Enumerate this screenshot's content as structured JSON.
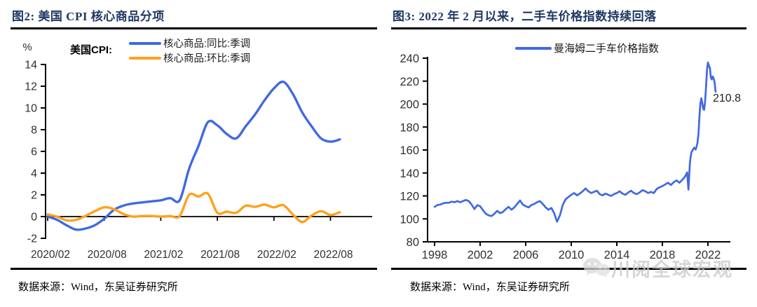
{
  "chart_data": [
    {
      "type": "line",
      "title": "图2:  美国 CPI 核心商品分项",
      "legend_prefix": "美国CPI:",
      "y_unit": "%",
      "ylim": [
        -2,
        14
      ],
      "y_ticks": [
        14,
        12,
        10,
        8,
        6,
        4,
        2,
        0,
        -2
      ],
      "x_tick_labels": [
        "2020/02",
        "2020/08",
        "2021/02",
        "2021/08",
        "2022/02",
        "2022/08"
      ],
      "x_tick_positions": [
        0,
        6,
        12,
        18,
        24,
        30
      ],
      "categories": [
        "2020/02",
        "2020/03",
        "2020/04",
        "2020/05",
        "2020/06",
        "2020/07",
        "2020/08",
        "2020/09",
        "2020/10",
        "2020/11",
        "2020/12",
        "2021/01",
        "2021/02",
        "2021/03",
        "2021/04",
        "2021/05",
        "2021/06",
        "2021/07",
        "2021/08",
        "2021/09",
        "2021/10",
        "2021/11",
        "2021/12",
        "2022/01",
        "2022/02",
        "2022/03",
        "2022/04",
        "2022/05",
        "2022/06",
        "2022/07",
        "2022/08",
        "2022/09"
      ],
      "series": [
        {
          "name": "核心商品:同比:季调",
          "color": "#4169e1",
          "values": [
            0.0,
            -0.3,
            -0.8,
            -1.2,
            -1.1,
            -0.8,
            -0.2,
            0.6,
            1.0,
            1.2,
            1.3,
            1.4,
            1.5,
            1.7,
            1.5,
            4.4,
            6.5,
            8.7,
            8.4,
            7.6,
            7.2,
            8.3,
            9.4,
            10.7,
            11.8,
            12.4,
            11.3,
            9.6,
            8.3,
            7.2,
            6.9,
            7.1
          ]
        },
        {
          "name": "核心商品:环比:季调",
          "color": "#ffa11c",
          "values": [
            0.2,
            0.0,
            -0.35,
            -0.3,
            0.05,
            0.5,
            0.85,
            0.7,
            0.25,
            0.0,
            0.05,
            0.05,
            0.0,
            0.05,
            0.05,
            2.0,
            1.85,
            2.1,
            0.35,
            0.45,
            0.35,
            1.0,
            0.9,
            1.1,
            0.85,
            1.05,
            0.2,
            -0.5,
            0.1,
            0.5,
            0.15,
            0.4
          ]
        }
      ],
      "grid": "off",
      "legend_position": "top",
      "source": "数据来源：Wind，东吴证券研究所"
    },
    {
      "type": "line",
      "title": "图3:  2022 年 2 月以来，二手车价格指数持续回落",
      "ylim": [
        80,
        240
      ],
      "xlim": [
        1998,
        2022
      ],
      "y_ticks": [
        240,
        220,
        200,
        180,
        160,
        140,
        120,
        100,
        80
      ],
      "x_ticks": [
        1998,
        2002,
        2006,
        2010,
        2014,
        2018,
        2022
      ],
      "x_tick_labels": [
        "1998",
        "2002",
        "2006",
        "2010",
        "2014",
        "2018",
        "2022"
      ],
      "series": [
        {
          "name": "曼海姆二手车价格指数",
          "color": "#4169e1",
          "points": [
            [
              1998.0,
              110.5
            ],
            [
              1998.25,
              112
            ],
            [
              1998.5,
              112.5
            ],
            [
              1998.75,
              113.5
            ],
            [
              1999.0,
              114
            ],
            [
              1999.25,
              114
            ],
            [
              1999.5,
              115
            ],
            [
              1999.75,
              114.5
            ],
            [
              2000.0,
              115.5
            ],
            [
              2000.25,
              114.5
            ],
            [
              2000.5,
              115.5
            ],
            [
              2000.75,
              116.5
            ],
            [
              2001.0,
              115.5
            ],
            [
              2001.25,
              112.5
            ],
            [
              2001.5,
              108.5
            ],
            [
              2001.75,
              112
            ],
            [
              2002.0,
              111
            ],
            [
              2002.25,
              107.5
            ],
            [
              2002.5,
              104.5
            ],
            [
              2002.75,
              103
            ],
            [
              2003.0,
              102.5
            ],
            [
              2003.25,
              104.5
            ],
            [
              2003.5,
              107
            ],
            [
              2003.75,
              105
            ],
            [
              2004.0,
              106
            ],
            [
              2004.25,
              108.5
            ],
            [
              2004.5,
              110.5
            ],
            [
              2004.75,
              108
            ],
            [
              2005.0,
              110
            ],
            [
              2005.25,
              113
            ],
            [
              2005.5,
              116
            ],
            [
              2005.75,
              112.5
            ],
            [
              2006.0,
              111
            ],
            [
              2006.25,
              110
            ],
            [
              2006.5,
              112
            ],
            [
              2006.75,
              113
            ],
            [
              2007.0,
              114.5
            ],
            [
              2007.25,
              115.5
            ],
            [
              2007.5,
              113
            ],
            [
              2007.75,
              110
            ],
            [
              2008.0,
              108
            ],
            [
              2008.25,
              109.5
            ],
            [
              2008.5,
              105
            ],
            [
              2008.75,
              97.5
            ],
            [
              2009.0,
              103
            ],
            [
              2009.25,
              112
            ],
            [
              2009.5,
              117
            ],
            [
              2009.75,
              119
            ],
            [
              2010.0,
              121
            ],
            [
              2010.25,
              122.5
            ],
            [
              2010.5,
              120.5
            ],
            [
              2010.75,
              122
            ],
            [
              2011.0,
              124
            ],
            [
              2011.25,
              126.5
            ],
            [
              2011.5,
              124
            ],
            [
              2011.75,
              122.5
            ],
            [
              2012.0,
              123.5
            ],
            [
              2012.25,
              124.5
            ],
            [
              2012.5,
              121.5
            ],
            [
              2012.75,
              120.5
            ],
            [
              2013.0,
              122
            ],
            [
              2013.25,
              121
            ],
            [
              2013.5,
              120
            ],
            [
              2013.75,
              121.5
            ],
            [
              2014.0,
              122.5
            ],
            [
              2014.25,
              124
            ],
            [
              2014.5,
              122
            ],
            [
              2014.75,
              121
            ],
            [
              2015.0,
              123
            ],
            [
              2015.25,
              124.5
            ],
            [
              2015.5,
              122.5
            ],
            [
              2015.75,
              121.5
            ],
            [
              2016.0,
              123
            ],
            [
              2016.25,
              125
            ],
            [
              2016.5,
              124
            ],
            [
              2016.75,
              122.5
            ],
            [
              2017.0,
              123.5
            ],
            [
              2017.25,
              122.5
            ],
            [
              2017.5,
              126
            ],
            [
              2017.75,
              127.5
            ],
            [
              2018.0,
              128.5
            ],
            [
              2018.25,
              130
            ],
            [
              2018.5,
              131.5
            ],
            [
              2018.75,
              129.5
            ],
            [
              2019.0,
              132
            ],
            [
              2019.25,
              133.5
            ],
            [
              2019.5,
              131.5
            ],
            [
              2019.75,
              134
            ],
            [
              2020.0,
              137
            ],
            [
              2020.17,
              140.5
            ],
            [
              2020.29,
              125.5
            ],
            [
              2020.42,
              149
            ],
            [
              2020.54,
              158
            ],
            [
              2020.67,
              160
            ],
            [
              2020.79,
              162
            ],
            [
              2020.92,
              160.5
            ],
            [
              2021.0,
              163
            ],
            [
              2021.08,
              166
            ],
            [
              2021.17,
              174
            ],
            [
              2021.25,
              188
            ],
            [
              2021.33,
              200
            ],
            [
              2021.42,
              205
            ],
            [
              2021.5,
              201
            ],
            [
              2021.58,
              196
            ],
            [
              2021.67,
              195
            ],
            [
              2021.75,
              202
            ],
            [
              2021.83,
              214
            ],
            [
              2021.92,
              230
            ],
            [
              2022.0,
              236.3
            ],
            [
              2022.08,
              233.5
            ],
            [
              2022.17,
              231.5
            ],
            [
              2022.25,
              223.5
            ],
            [
              2022.33,
              221.5
            ],
            [
              2022.42,
              224
            ],
            [
              2022.5,
              222.5
            ],
            [
              2022.58,
              219.5
            ],
            [
              2022.67,
              210.8
            ]
          ]
        }
      ],
      "annotation": {
        "label": "210.8",
        "x": 2022.67,
        "y": 210.8
      },
      "grid": "off",
      "legend_position": "top",
      "source": "数据来源：Wind，东吴证券研究所",
      "watermark": "川阅全球宏观"
    }
  ]
}
